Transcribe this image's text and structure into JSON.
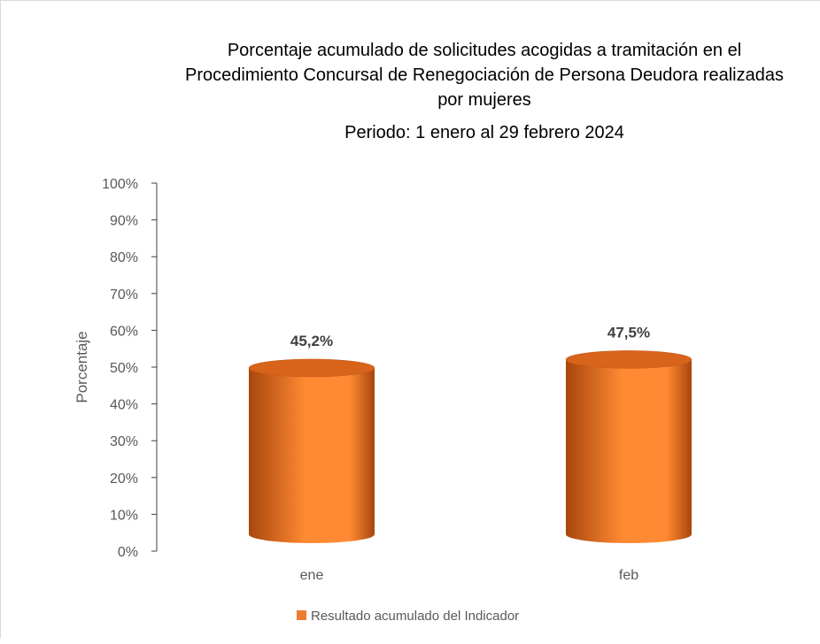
{
  "chart_data": {
    "type": "bar",
    "title_lines": [
      "Porcentaje acumulado de solicitudes acogidas a tramitación en el",
      "Procedimiento Concursal de Renegociación de Persona Deudora realizadas",
      "por mujeres",
      "Periodo: 1 enero al 29 febrero 2024"
    ],
    "categories": [
      "ene",
      "feb"
    ],
    "series": [
      {
        "name": "Resultado acumulado del Indicador",
        "values": [
          45.2,
          47.5
        ],
        "labels": [
          "45,2%",
          "47,5%"
        ]
      }
    ],
    "ylabel": "Porcentaje",
    "xlabel": "",
    "ylim": [
      0,
      100
    ],
    "y_ticks": [
      "0%",
      "10%",
      "20%",
      "30%",
      "40%",
      "50%",
      "60%",
      "70%",
      "80%",
      "90%",
      "100%"
    ],
    "grid": false,
    "legend": "bottom",
    "bar_style": "cylinder",
    "colors": {
      "bar_light": "#ff8a33",
      "bar_dark": "#a8460c",
      "bar_top": "#d8631a",
      "axis": "#404040",
      "text": "#595959",
      "title": "#000000",
      "data_label": "#404040"
    }
  }
}
